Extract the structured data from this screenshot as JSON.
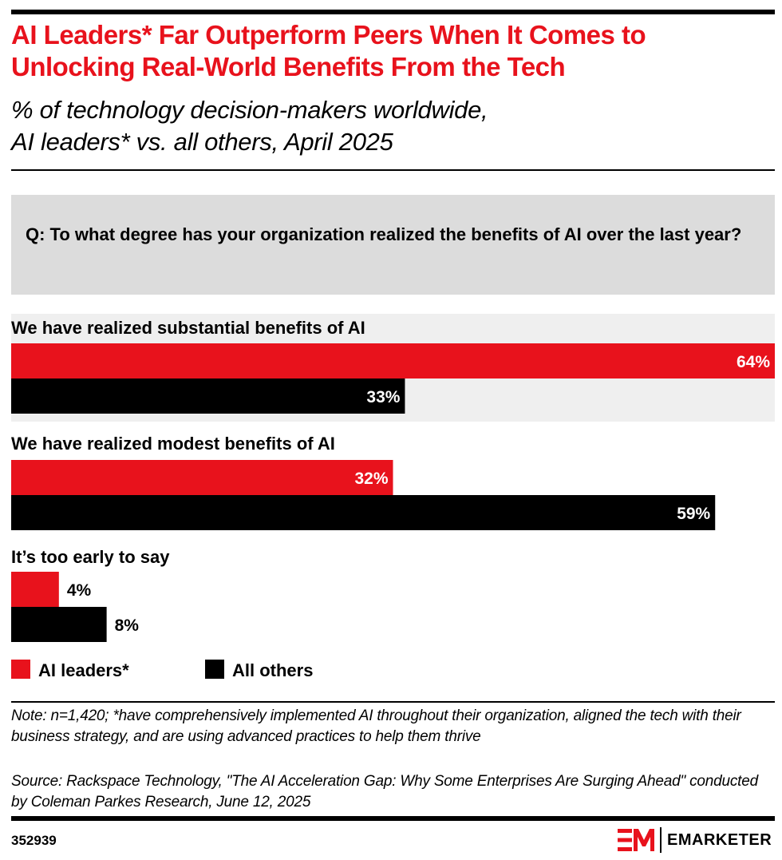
{
  "header": {
    "title": "AI Leaders* Far Outperform Peers When It Comes to Unlocking Real-World Benefits From the Tech",
    "subtitle_line1": "% of technology decision-makers worldwide,",
    "subtitle_line2": "AI leaders* vs. all others, April 2025"
  },
  "question": "Q: To what degree has your organization realized the benefits of AI over the last year?",
  "colors": {
    "ai_leaders": "#e8121c",
    "all_others": "#000000",
    "highlight_band": "#efefef",
    "question_bg": "#dcdcdc"
  },
  "chart_data": {
    "type": "bar",
    "orientation": "horizontal",
    "title": "AI Leaders* Far Outperform Peers When It Comes to Unlocking Real-World Benefits From the Tech",
    "subtitle": "% of technology decision-makers worldwide, AI leaders* vs. all others, April 2025",
    "categories": [
      "We have realized substantial benefits of AI",
      "We have realized modest benefits of AI",
      "It’s too early to say"
    ],
    "series": [
      {
        "name": "AI leaders*",
        "color": "#e8121c",
        "values": [
          64,
          32,
          4
        ],
        "labels": [
          "64%",
          "32%",
          "4%"
        ]
      },
      {
        "name": "All others",
        "color": "#000000",
        "values": [
          33,
          59,
          8
        ],
        "labels": [
          "33%",
          "59%",
          "8%"
        ]
      }
    ],
    "xlim": [
      0,
      64
    ],
    "unit": "%",
    "grid": false,
    "legend": {
      "position": "bottom-left",
      "entries": [
        "AI leaders*",
        "All others"
      ]
    },
    "highlighted_category_index": 0
  },
  "footer": {
    "note": "Note: n=1,420; *have comprehensively implemented AI throughout their organization, aligned the tech with their business strategy, and are using advanced practices to help them thrive",
    "source": "Source: Rackspace Technology, \"The AI Acceleration Gap: Why Some Enterprises Are Surging Ahead\" conducted by Coleman Parkes Research, June 12, 2025",
    "chart_id": "352939",
    "brand": "EMARKETER"
  }
}
